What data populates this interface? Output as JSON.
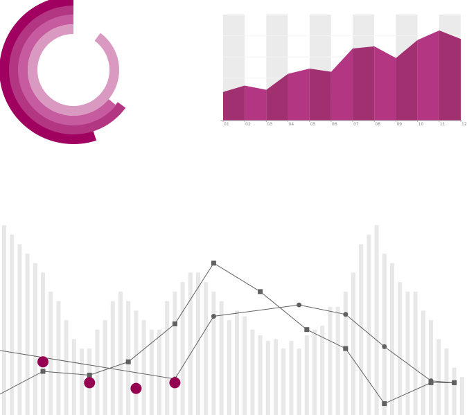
{
  "colors": {
    "ring1": "#a0005f",
    "ring2": "#b23681",
    "ring3": "#c75ba0",
    "ring4": "#da99c0",
    "area_a": "#a0306f",
    "area_b": "#b23681",
    "band": "#ebebeb",
    "bars": "#e8e8e8",
    "lines": "#606060",
    "markers_big": "#960050",
    "axis": "#aaaaaa"
  },
  "chart_data": [
    {
      "type": "pie",
      "variant": "radial-progress",
      "title": "",
      "rings": [
        {
          "name": "",
          "value": 0.55
        },
        {
          "name": "",
          "value": 0.65
        },
        {
          "name": "",
          "value": 0.64
        },
        {
          "name": "",
          "value": 0.9
        }
      ]
    },
    {
      "type": "area",
      "title": "",
      "categories": [
        "01",
        "02",
        "03",
        "04",
        "05",
        "06",
        "07",
        "08",
        "09",
        "10",
        "11",
        "12"
      ],
      "values": [
        27,
        33,
        29,
        44,
        49,
        46,
        68,
        70,
        59,
        76,
        85,
        77
      ],
      "ylim": [
        0,
        100
      ],
      "grid": true,
      "bands": "alternating"
    },
    {
      "type": "line",
      "title": "",
      "bars": [
        100,
        95,
        90,
        85,
        80,
        75,
        65,
        60,
        50,
        40,
        35,
        35,
        45,
        50,
        60,
        65,
        60,
        55,
        50,
        45,
        45,
        60,
        65,
        70,
        75,
        75,
        70,
        65,
        60,
        50,
        55,
        52,
        45,
        42,
        39,
        40,
        35,
        39,
        35,
        42,
        45,
        47,
        57,
        57,
        65,
        75,
        90,
        95,
        100,
        85,
        80,
        70,
        65,
        65,
        55,
        50,
        40,
        35,
        25,
        20,
        40
      ],
      "ylim": [
        0,
        100
      ],
      "series": [
        {
          "name": "",
          "marker": "square",
          "x": [
            0,
            5,
            11,
            16,
            22,
            27,
            33,
            39,
            44,
            49,
            55,
            58
          ],
          "y": [
            11,
            23,
            21,
            28,
            48,
            80,
            65,
            45,
            35,
            6,
            17,
            17
          ]
        },
        {
          "name": "",
          "marker": "dot",
          "x": [
            0,
            22,
            27,
            38,
            44,
            49,
            55,
            58
          ],
          "y": [
            34,
            19,
            52,
            58,
            53,
            36,
            18,
            17
          ]
        },
        {
          "name": "",
          "marker": "big",
          "x": [
            5,
            11,
            17,
            22
          ],
          "y": [
            28,
            17,
            14,
            17
          ]
        }
      ]
    }
  ]
}
